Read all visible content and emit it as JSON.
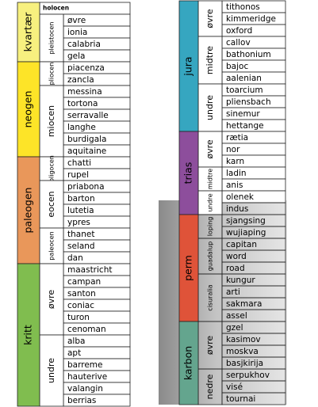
{
  "left": {
    "periods": [
      {
        "name": "kvartær",
        "color": "#f7f07f",
        "epochs": [
          {
            "name": "holocen",
            "stages": []
          },
          {
            "name": "pleistocen",
            "stages": [
              "øvre",
              "ionia",
              "calabria",
              "gela"
            ]
          }
        ]
      },
      {
        "name": "neogen",
        "color": "#fde428",
        "epochs": [
          {
            "name": "pliocen",
            "stages": [
              "piacenza",
              "zancla"
            ]
          },
          {
            "name": "miocen",
            "stages": [
              "messina",
              "tortona",
              "serravalle",
              "langhe",
              "burdigala",
              "aquitaine"
            ]
          }
        ]
      },
      {
        "name": "paleogen",
        "color": "#e9975a",
        "epochs": [
          {
            "name": "oligocen",
            "stages": [
              "chatti",
              "rupel"
            ]
          },
          {
            "name": "eocen",
            "stages": [
              "priabona",
              "barton",
              "lutetia",
              "ypres"
            ]
          },
          {
            "name": "paleocen",
            "stages": [
              "thanet",
              "seland",
              "dan"
            ]
          }
        ]
      },
      {
        "name": "kritt",
        "color": "#80bd4f",
        "epochs": [
          {
            "name": "øvre",
            "stages": [
              "maastricht",
              "campan",
              "santon",
              "coniac",
              "turon",
              "cenoman"
            ]
          },
          {
            "name": "undre",
            "stages": [
              "alba",
              "apt",
              "barreme",
              "hauterive",
              "valangin",
              "berrias"
            ]
          }
        ]
      }
    ]
  },
  "right": {
    "periods": [
      {
        "name": "jura",
        "color": "#36a6c0",
        "epochs": [
          {
            "name": "øvre",
            "stages": [
              "tithonos",
              "kimmeridge",
              "oxford"
            ]
          },
          {
            "name": "midtre",
            "stages": [
              "callov",
              "bathonium",
              "bajoc",
              "aalenian"
            ]
          },
          {
            "name": "undre",
            "stages": [
              "toarcium",
              "pliensbach",
              "sinemur",
              "hettange"
            ]
          }
        ]
      },
      {
        "name": "trias",
        "color": "#8d4e9c",
        "epochs": [
          {
            "name": "øvre",
            "stages": [
              "rætia",
              "nor",
              "karn"
            ]
          },
          {
            "name": "midtre",
            "stages": [
              "ladin",
              "anis"
            ]
          },
          {
            "name": "undre",
            "stages": [
              "olenek",
              "indus"
            ]
          }
        ]
      },
      {
        "name": "perm",
        "color": "#df5339",
        "epochs": [
          {
            "name": "loping",
            "stages": [
              "sjangsing",
              "wujiaping"
            ]
          },
          {
            "name": "guadalup",
            "stages": [
              "capitan",
              "word",
              "road"
            ]
          },
          {
            "name": "cisuralia",
            "stages": [
              "kungur",
              "arti",
              "sakmara",
              "assel"
            ]
          }
        ]
      },
      {
        "name": "karbon",
        "color": "#64a58e",
        "epochs": [
          {
            "name": "øvre",
            "stages": [
              "gzel",
              "kasimov",
              "moskva",
              "basjkirija"
            ]
          },
          {
            "name": "nedre",
            "stages": [
              "serpukhov",
              "visé",
              "tournai"
            ]
          }
        ]
      }
    ]
  }
}
